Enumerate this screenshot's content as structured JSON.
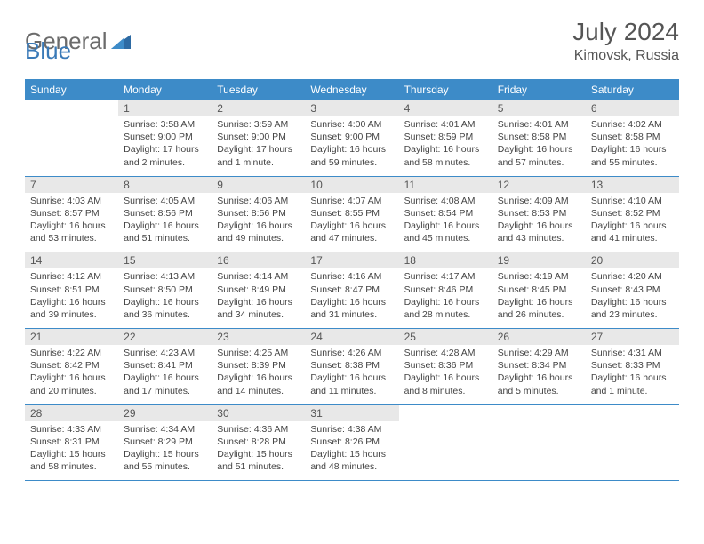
{
  "logo": {
    "text1": "General",
    "text2": "Blue"
  },
  "title": "July 2024",
  "location": "Kimovsk, Russia",
  "colors": {
    "header_bg": "#3d8bc8",
    "header_text": "#ffffff",
    "daynum_bg": "#e8e8e8",
    "text": "#444444",
    "border": "#3d8bc8",
    "logo_gray": "#6b6b6b",
    "logo_blue": "#3a7ab8"
  },
  "weekdays": [
    "Sunday",
    "Monday",
    "Tuesday",
    "Wednesday",
    "Thursday",
    "Friday",
    "Saturday"
  ],
  "weeks": [
    [
      null,
      {
        "n": "1",
        "sr": "3:58 AM",
        "ss": "9:00 PM",
        "dl": "17 hours and 2 minutes."
      },
      {
        "n": "2",
        "sr": "3:59 AM",
        "ss": "9:00 PM",
        "dl": "17 hours and 1 minute."
      },
      {
        "n": "3",
        "sr": "4:00 AM",
        "ss": "9:00 PM",
        "dl": "16 hours and 59 minutes."
      },
      {
        "n": "4",
        "sr": "4:01 AM",
        "ss": "8:59 PM",
        "dl": "16 hours and 58 minutes."
      },
      {
        "n": "5",
        "sr": "4:01 AM",
        "ss": "8:58 PM",
        "dl": "16 hours and 57 minutes."
      },
      {
        "n": "6",
        "sr": "4:02 AM",
        "ss": "8:58 PM",
        "dl": "16 hours and 55 minutes."
      }
    ],
    [
      {
        "n": "7",
        "sr": "4:03 AM",
        "ss": "8:57 PM",
        "dl": "16 hours and 53 minutes."
      },
      {
        "n": "8",
        "sr": "4:05 AM",
        "ss": "8:56 PM",
        "dl": "16 hours and 51 minutes."
      },
      {
        "n": "9",
        "sr": "4:06 AM",
        "ss": "8:56 PM",
        "dl": "16 hours and 49 minutes."
      },
      {
        "n": "10",
        "sr": "4:07 AM",
        "ss": "8:55 PM",
        "dl": "16 hours and 47 minutes."
      },
      {
        "n": "11",
        "sr": "4:08 AM",
        "ss": "8:54 PM",
        "dl": "16 hours and 45 minutes."
      },
      {
        "n": "12",
        "sr": "4:09 AM",
        "ss": "8:53 PM",
        "dl": "16 hours and 43 minutes."
      },
      {
        "n": "13",
        "sr": "4:10 AM",
        "ss": "8:52 PM",
        "dl": "16 hours and 41 minutes."
      }
    ],
    [
      {
        "n": "14",
        "sr": "4:12 AM",
        "ss": "8:51 PM",
        "dl": "16 hours and 39 minutes."
      },
      {
        "n": "15",
        "sr": "4:13 AM",
        "ss": "8:50 PM",
        "dl": "16 hours and 36 minutes."
      },
      {
        "n": "16",
        "sr": "4:14 AM",
        "ss": "8:49 PM",
        "dl": "16 hours and 34 minutes."
      },
      {
        "n": "17",
        "sr": "4:16 AM",
        "ss": "8:47 PM",
        "dl": "16 hours and 31 minutes."
      },
      {
        "n": "18",
        "sr": "4:17 AM",
        "ss": "8:46 PM",
        "dl": "16 hours and 28 minutes."
      },
      {
        "n": "19",
        "sr": "4:19 AM",
        "ss": "8:45 PM",
        "dl": "16 hours and 26 minutes."
      },
      {
        "n": "20",
        "sr": "4:20 AM",
        "ss": "8:43 PM",
        "dl": "16 hours and 23 minutes."
      }
    ],
    [
      {
        "n": "21",
        "sr": "4:22 AM",
        "ss": "8:42 PM",
        "dl": "16 hours and 20 minutes."
      },
      {
        "n": "22",
        "sr": "4:23 AM",
        "ss": "8:41 PM",
        "dl": "16 hours and 17 minutes."
      },
      {
        "n": "23",
        "sr": "4:25 AM",
        "ss": "8:39 PM",
        "dl": "16 hours and 14 minutes."
      },
      {
        "n": "24",
        "sr": "4:26 AM",
        "ss": "8:38 PM",
        "dl": "16 hours and 11 minutes."
      },
      {
        "n": "25",
        "sr": "4:28 AM",
        "ss": "8:36 PM",
        "dl": "16 hours and 8 minutes."
      },
      {
        "n": "26",
        "sr": "4:29 AM",
        "ss": "8:34 PM",
        "dl": "16 hours and 5 minutes."
      },
      {
        "n": "27",
        "sr": "4:31 AM",
        "ss": "8:33 PM",
        "dl": "16 hours and 1 minute."
      }
    ],
    [
      {
        "n": "28",
        "sr": "4:33 AM",
        "ss": "8:31 PM",
        "dl": "15 hours and 58 minutes."
      },
      {
        "n": "29",
        "sr": "4:34 AM",
        "ss": "8:29 PM",
        "dl": "15 hours and 55 minutes."
      },
      {
        "n": "30",
        "sr": "4:36 AM",
        "ss": "8:28 PM",
        "dl": "15 hours and 51 minutes."
      },
      {
        "n": "31",
        "sr": "4:38 AM",
        "ss": "8:26 PM",
        "dl": "15 hours and 48 minutes."
      },
      null,
      null,
      null
    ]
  ],
  "labels": {
    "sunrise": "Sunrise:",
    "sunset": "Sunset:",
    "daylight": "Daylight:"
  }
}
